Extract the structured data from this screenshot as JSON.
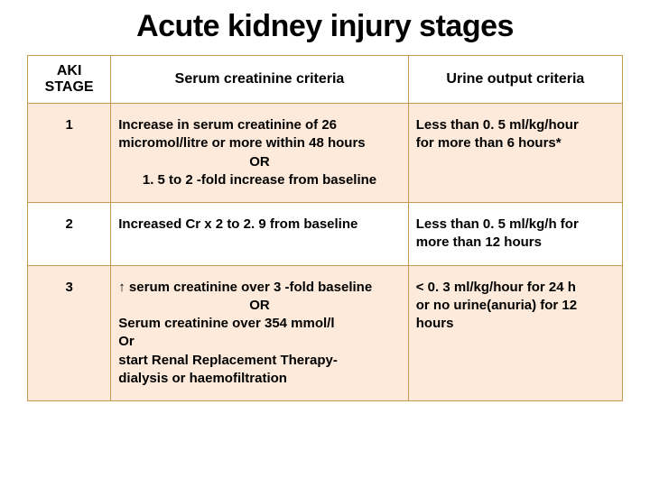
{
  "title": "Acute kidney injury stages",
  "table": {
    "columns": [
      "AKI STAGE",
      "Serum creatinine criteria",
      "Urine output criteria"
    ],
    "header_bg": "#ffffff",
    "border_color": "#c59a50",
    "row_bg_odd": "#fdeada",
    "row_bg_even": "#ffffff",
    "rows": [
      {
        "stage": "1",
        "serum_l1": "Increase in serum creatinine of 26",
        "serum_l2": "micromol/litre or more within 48 hours",
        "serum_or": "OR",
        "serum_l3": "1. 5 to 2 -fold increase from baseline",
        "urine_l1": "Less than 0. 5 ml/kg/hour",
        "urine_l2": "for more than 6 hours*"
      },
      {
        "stage": "2",
        "serum_l1": "Increased Cr x 2 to 2. 9 from baseline",
        "urine_l1": "Less than 0. 5 ml/kg/h for",
        "urine_l2": "more than 12 hours"
      },
      {
        "stage": "3",
        "serum_l1": "↑ serum creatinine  over 3 -fold  baseline",
        "serum_or": "OR",
        "serum_l2": "Serum creatinine  over 354 mmol/l",
        "serum_l3": "Or",
        "serum_l4": "start Renal Replacement Therapy-",
        "serum_l5": "dialysis or haemofiltration",
        "urine_l1": "< 0. 3 ml/kg/hour for 24 h",
        "urine_blank": " ",
        "urine_l2": "or no urine(anuria) for 12",
        "urine_l3": "hours"
      }
    ]
  },
  "colors": {
    "title": "#000000",
    "text": "#000000",
    "bg": "#ffffff"
  }
}
